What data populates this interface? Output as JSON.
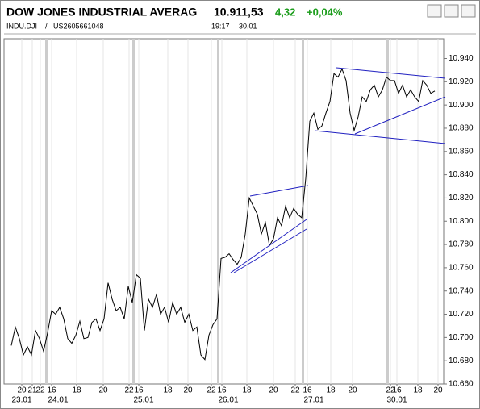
{
  "header": {
    "title": "DOW JONES INDUSTRIAL AVERAG",
    "price": "10.911,53",
    "change": "4,32",
    "change_pct": "+0,04%",
    "symbol": "INDU.DJI",
    "separator": "/",
    "isin": "US2605661048",
    "time": "19:17",
    "date": "30.01"
  },
  "chart_data": {
    "type": "line",
    "color": "#000000",
    "values": [
      10693,
      10709,
      10699,
      10685,
      10692,
      10685,
      10706,
      10699,
      10688,
      10704,
      10723,
      10720,
      10726,
      10716,
      10699,
      10695,
      10702,
      10714,
      10699,
      10700,
      10713,
      10716,
      10706,
      10716,
      10747,
      10733,
      10723,
      10726,
      10716,
      10744,
      10730,
      10754,
      10751,
      10706,
      10733,
      10726,
      10737,
      10720,
      10726,
      10713,
      10730,
      10720,
      10726,
      10713,
      10720,
      10706,
      10709,
      10685,
      10681,
      10702,
      10711,
      10716,
      10768,
      10769,
      10772,
      10767,
      10763,
      10769,
      10789,
      10820,
      10813,
      10806,
      10789,
      10799,
      10779,
      10785,
      10803,
      10796,
      10813,
      10803,
      10811,
      10806,
      10803,
      10837,
      10886,
      10893,
      10879,
      10882,
      10893,
      10903,
      10927,
      10924,
      10931,
      10921,
      10893,
      10878,
      10890,
      10907,
      10903,
      10913,
      10917,
      10907,
      10913,
      10924,
      10921,
      10921,
      10910,
      10917,
      10907,
      10913,
      10907,
      10903,
      10921,
      10917,
      10910,
      10912
    ],
    "xlim": [
      -1.8,
      107.2
    ],
    "xticks": [
      {
        "value": 2.6,
        "label": "20"
      },
      {
        "value": 5.2,
        "label": "21"
      },
      {
        "value": 7.2,
        "label": "22"
      },
      {
        "value": 10,
        "label": "16"
      },
      {
        "value": 16.2,
        "label": "18"
      },
      {
        "value": 22.8,
        "label": "20"
      },
      {
        "value": 29.2,
        "label": "22"
      },
      {
        "value": 31.6,
        "label": "16"
      },
      {
        "value": 38.8,
        "label": "18"
      },
      {
        "value": 43.8,
        "label": "20"
      },
      {
        "value": 49.6,
        "label": "22"
      },
      {
        "value": 52.2,
        "label": "16"
      },
      {
        "value": 58.4,
        "label": "18"
      },
      {
        "value": 65,
        "label": "20"
      },
      {
        "value": 70.4,
        "label": "22"
      },
      {
        "value": 73.4,
        "label": "16"
      },
      {
        "value": 79.2,
        "label": "18"
      },
      {
        "value": 84.6,
        "label": "20"
      },
      {
        "value": 94,
        "label": "22"
      },
      {
        "value": 95.6,
        "label": "16"
      },
      {
        "value": 100.8,
        "label": "18"
      },
      {
        "value": 105.8,
        "label": "20"
      }
    ],
    "date_ticks": [
      {
        "value": 2.6,
        "label": "23.01"
      },
      {
        "value": 11.6,
        "label": "24.01"
      },
      {
        "value": 32.8,
        "label": "25.01"
      },
      {
        "value": 53.8,
        "label": "26.01"
      },
      {
        "value": 75,
        "label": "27.01"
      },
      {
        "value": 95.6,
        "label": "30.01"
      }
    ],
    "ylim": [
      10660,
      10957
    ],
    "yticks": [
      {
        "value": 10660,
        "label": "10.660"
      },
      {
        "value": 10680,
        "label": "10.680"
      },
      {
        "value": 10700,
        "label": "10.700"
      },
      {
        "value": 10720,
        "label": "10.720"
      },
      {
        "value": 10740,
        "label": "10.740"
      },
      {
        "value": 10760,
        "label": "10.760"
      },
      {
        "value": 10780,
        "label": "10.780"
      },
      {
        "value": 10800,
        "label": "10.800"
      },
      {
        "value": 10820,
        "label": "10.820"
      },
      {
        "value": 10840,
        "label": "10.840"
      },
      {
        "value": 10860,
        "label": "10.860"
      },
      {
        "value": 10880,
        "label": "10.880"
      },
      {
        "value": 10900,
        "label": "10.900"
      },
      {
        "value": 10920,
        "label": "10.920"
      },
      {
        "value": 10940,
        "label": "10.940"
      }
    ],
    "grid": true
  }
}
